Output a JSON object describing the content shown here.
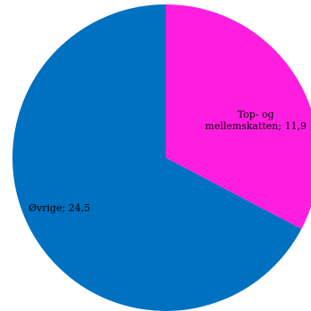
{
  "chart_data": {
    "type": "pie",
    "title": "",
    "start_angle_deg": 0,
    "direction": "clockwise",
    "slices": [
      {
        "label_lines": [
          "Top- og",
          "mellemskatten; 11,9"
        ],
        "category": "Top- og mellemskatten",
        "value": 11.9,
        "color": "#ff1ee0"
      },
      {
        "label_lines": [
          "Øvrige; 24,5"
        ],
        "category": "Øvrige",
        "value": 24.5,
        "color": "#0070c0"
      }
    ]
  }
}
